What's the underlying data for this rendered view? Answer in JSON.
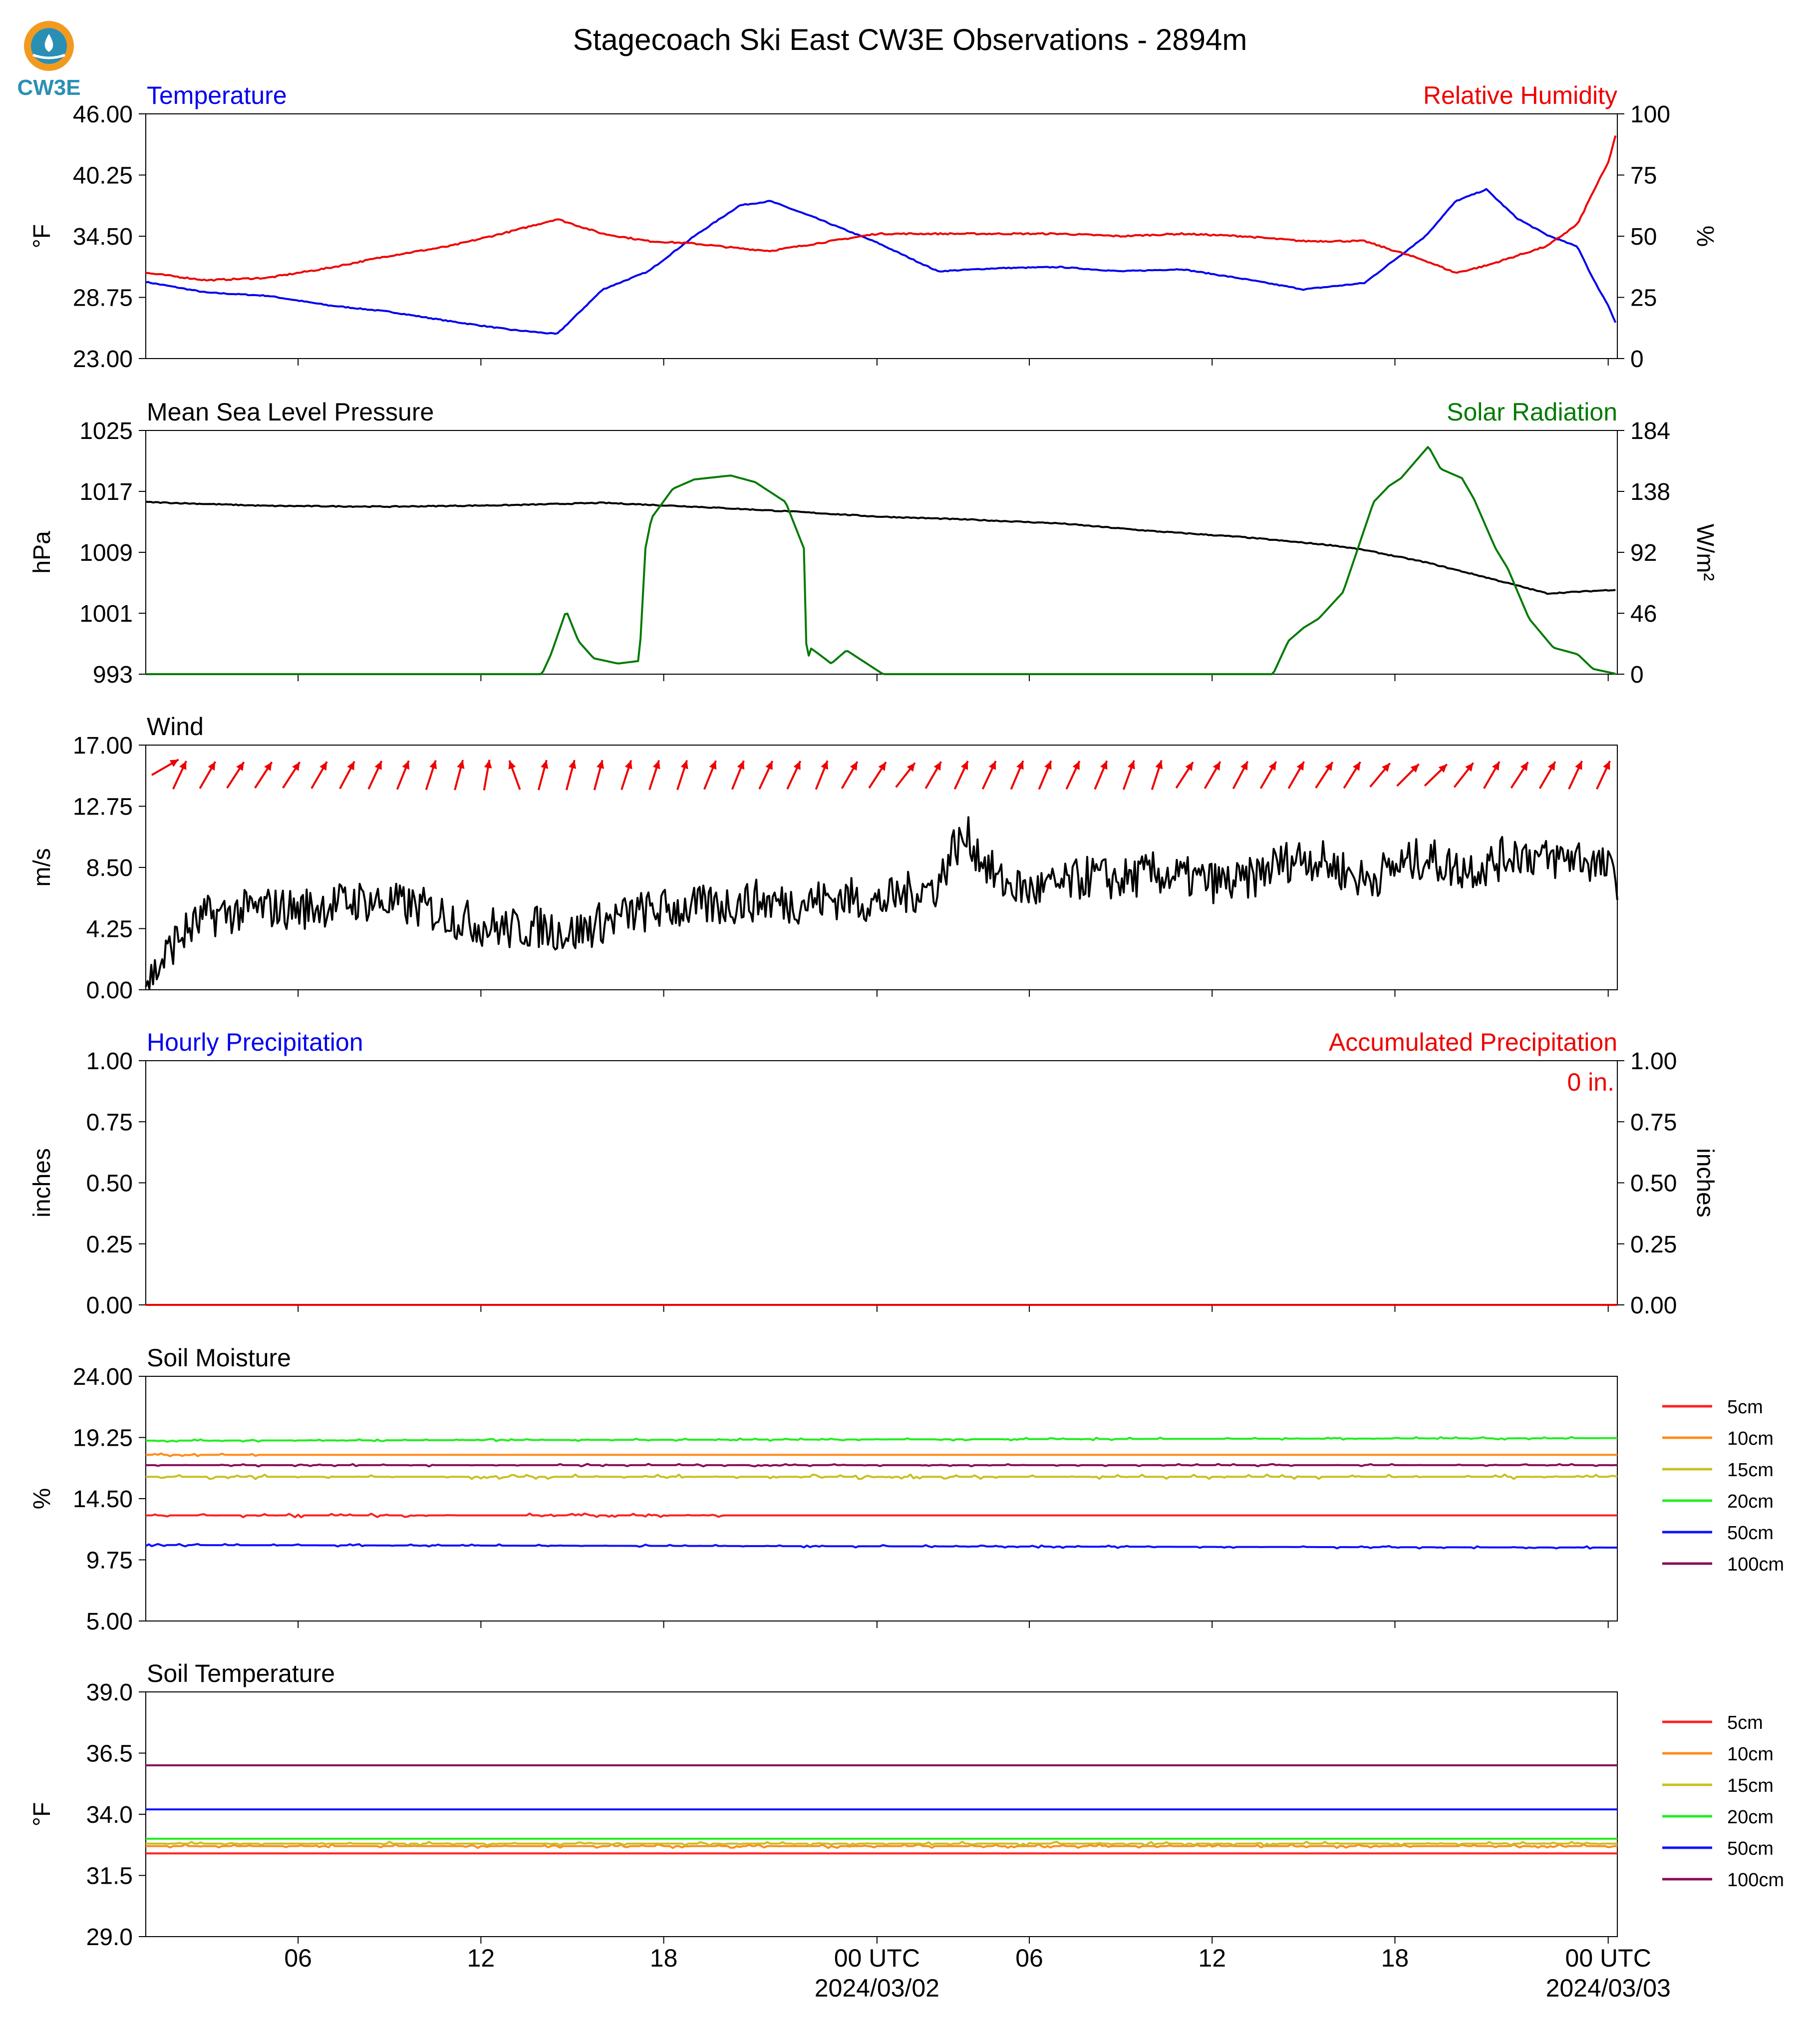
{
  "figure": {
    "title": "Stagecoach Ski East CW3E Observations - 2894m",
    "logo_text": "CW3E",
    "x_ticks": [
      "06",
      "12",
      "18",
      "00 UTC",
      "06",
      "12",
      "18",
      "00 UTC"
    ],
    "x_dates": [
      "2024/03/02",
      "2024/03/03"
    ],
    "colors": {
      "blue": "#0000ee",
      "red": "#ee0000",
      "green": "#007a00",
      "black": "#000000",
      "logo_orange": "#f29a1f",
      "logo_teal": "#2a8fb5"
    }
  },
  "chart_data": [
    {
      "type": "line",
      "left_title": "Temperature",
      "right_title": "Relative Humidity",
      "ylabel": "°F",
      "ylabel_right": "%",
      "ylim": [
        23,
        46
      ],
      "yticks": [
        "46.00",
        "40.25",
        "34.50",
        "28.75",
        "23.00"
      ],
      "ylim_right": [
        0,
        100
      ],
      "yticks_right": [
        "100",
        "75",
        "50",
        "25",
        "0"
      ],
      "x_hours": [
        0,
        2,
        4,
        6,
        8,
        10,
        12,
        13.5,
        15,
        16.5,
        18,
        19.5,
        20.5,
        22,
        24,
        26,
        28,
        30,
        32,
        34,
        36,
        38,
        40,
        42,
        43,
        44,
        45,
        46,
        47,
        47.5,
        48,
        48.3
      ],
      "series": [
        {
          "name": "Temperature",
          "color": "#0000ee",
          "axis": "left",
          "values": [
            30.2,
            29.2,
            28.9,
            28.0,
            27.4,
            26.5,
            25.7,
            25.3,
            29.5,
            31.2,
            34.5,
            37.4,
            37.8,
            36.2,
            33.9,
            31.2,
            31.5,
            31.6,
            31.2,
            31.4,
            30.5,
            29.5,
            30.1,
            34.5,
            37.8,
            38.9,
            36.2,
            34.6,
            33.5,
            30.5,
            28.0,
            26.0
          ]
        },
        {
          "name": "Relative Humidity",
          "color": "#ee0000",
          "axis": "right",
          "values": [
            35,
            32,
            33,
            37,
            42,
            46,
            52,
            57,
            51,
            48,
            47,
            45,
            44,
            47,
            51,
            51,
            51,
            51,
            50,
            51,
            50,
            48,
            48,
            40,
            35,
            38,
            42,
            46,
            55,
            68,
            80,
            94
          ]
        }
      ]
    },
    {
      "type": "line",
      "left_title": "Mean Sea Level Pressure",
      "right_title": "Solar Radiation",
      "ylabel": "hPa",
      "ylabel_right": "W/m²",
      "ylim": [
        993,
        1025
      ],
      "yticks": [
        "1025",
        "1017",
        "1009",
        "1001",
        "993"
      ],
      "ylim_right": [
        0,
        184
      ],
      "yticks_right": [
        "184",
        "138",
        "92",
        "46",
        "0"
      ],
      "x_hours": [
        0,
        4,
        8,
        12,
        15,
        18,
        21,
        24,
        27,
        30,
        33,
        36,
        39,
        40,
        42,
        44,
        46,
        48.3
      ],
      "series": [
        {
          "name": "Mean Sea Level Pressure",
          "color": "#000000",
          "axis": "left",
          "values": [
            1015.6,
            1015.1,
            1015.0,
            1015.2,
            1015.5,
            1015.0,
            1014.4,
            1013.7,
            1013.3,
            1012.8,
            1011.8,
            1011.0,
            1009.9,
            1009.3,
            1007.7,
            1005.7,
            1003.6,
            1004.1
          ]
        },
        {
          "name": "Solar Radiation",
          "color": "#007a00",
          "axis": "right",
          "x_hours": [
            0,
            13,
            13.3,
            13.8,
            14.2,
            14.7,
            15.5,
            16.2,
            16.4,
            16.6,
            17.3,
            18,
            19.2,
            20,
            21,
            21.6,
            21.7,
            21.8,
            22.1,
            22.5,
            23,
            23.4,
            23.8,
            24.2,
            36,
            37,
            37.5,
            38,
            38.5,
            39.3,
            40.3,
            40.8,
            41.2,
            42.1,
            42.5,
            43.2,
            43.6,
            44.3,
            44.7,
            45.4,
            46.2,
            47,
            47.5,
            48.3
          ],
          "values": [
            0,
            0,
            15,
            48,
            25,
            12,
            8,
            10,
            95,
            118,
            140,
            147,
            150,
            145,
            130,
            95,
            5,
            20,
            15,
            8,
            18,
            12,
            6,
            0,
            0,
            0,
            25,
            35,
            42,
            62,
            130,
            142,
            148,
            172,
            155,
            148,
            132,
            95,
            80,
            42,
            20,
            15,
            4,
            0
          ]
        }
      ]
    },
    {
      "type": "line",
      "left_title": "Wind",
      "ylabel": "m/s",
      "ylim": [
        0,
        17
      ],
      "yticks": [
        "17.00",
        "12.75",
        "8.50",
        "4.25",
        "0.00"
      ],
      "x_hours": [
        0,
        0.3,
        1,
        2,
        3,
        4,
        5,
        6,
        7,
        8,
        9,
        10,
        11,
        12,
        13,
        14,
        15,
        16,
        17,
        18,
        19,
        20,
        21,
        22,
        23,
        24,
        25,
        26,
        26.5,
        27,
        27.5,
        28,
        29,
        30,
        31,
        32,
        33,
        34,
        35,
        36,
        37,
        38,
        39,
        40,
        41,
        42,
        43,
        44,
        45,
        46,
        47,
        48,
        48.3
      ],
      "series": [
        {
          "name": "Wind Speed",
          "color": "#000000",
          "values": [
            0.6,
            1.2,
            3.5,
            5.1,
            5.4,
            5.7,
            5.6,
            5.9,
            6.2,
            6.0,
            5.7,
            5.1,
            4.5,
            4.2,
            4.4,
            3.9,
            4.7,
            5.3,
            5.6,
            5.7,
            5.9,
            6.2,
            6.0,
            6.2,
            6.4,
            6.0,
            6.7,
            7.2,
            9.9,
            10.5,
            9.0,
            7.5,
            6.9,
            7.2,
            7.9,
            7.6,
            8.1,
            7.8,
            7.5,
            7.4,
            8.6,
            9.3,
            8.6,
            7.6,
            8.5,
            9.2,
            8.4,
            8.6,
            9.6,
            9.0,
            9.3,
            8.3,
            7.7
          ]
        }
      ],
      "wind_barbs": {
        "color": "#ee0000",
        "direction_deg": [
          240,
          205,
          210,
          213,
          213,
          213,
          210,
          208,
          205,
          202,
          198,
          195,
          190,
          160,
          195,
          195,
          195,
          198,
          198,
          198,
          202,
          202,
          205,
          205,
          202,
          210,
          213,
          218,
          210,
          205,
          205,
          203,
          203,
          205,
          203,
          200,
          198,
          213,
          210,
          208,
          210,
          210,
          213,
          212,
          220,
          225,
          226,
          218,
          210,
          213,
          210,
          205,
          205
        ]
      }
    },
    {
      "type": "line",
      "left_title": "Hourly Precipitation",
      "right_title": "Accumulated Precipitation",
      "ylabel": "inches",
      "ylabel_right": "inches",
      "ylim": [
        0,
        1
      ],
      "yticks": [
        "1.00",
        "0.75",
        "0.50",
        "0.25",
        "0.00"
      ],
      "ylim_right": [
        0,
        1
      ],
      "yticks_right": [
        "1.00",
        "0.75",
        "0.50",
        "0.25",
        "0.00"
      ],
      "annotation": "0 in.",
      "x_hours": [
        0,
        48.3
      ],
      "series": [
        {
          "name": "Hourly Precipitation",
          "color": "#0000ee",
          "values": [
            0,
            0
          ]
        },
        {
          "name": "Accumulated Precipitation",
          "color": "#ee0000",
          "values": [
            0,
            0
          ]
        }
      ]
    },
    {
      "type": "line",
      "left_title": "Soil Moisture",
      "ylabel": "%",
      "ylim": [
        5,
        24
      ],
      "yticks": [
        "24.00",
        "19.25",
        "14.50",
        "9.75",
        "5.00"
      ],
      "legend": "right",
      "x_hours": [
        0,
        48.3
      ],
      "series": [
        {
          "name": "5cm",
          "color": "#ff2020",
          "values": [
            13.2,
            13.2
          ],
          "noise": 0.15,
          "noise_until": 20
        },
        {
          "name": "10cm",
          "color": "#ff8c1a",
          "values": [
            17.9,
            17.9
          ],
          "noise": 0.12,
          "noise_until": 4
        },
        {
          "name": "15cm",
          "color": "#c8c020",
          "values": [
            16.2,
            16.2
          ],
          "noise": 0.18,
          "noise_until": 48.3
        },
        {
          "name": "20cm",
          "color": "#22ee22",
          "values": [
            19.0,
            19.2
          ],
          "noise": 0.1,
          "noise_until": 48.3
        },
        {
          "name": "50cm",
          "color": "#1010ff",
          "values": [
            10.9,
            10.7
          ],
          "noise": 0.1,
          "noise_until": 48.3
        },
        {
          "name": "100cm",
          "color": "#8b0a5a",
          "values": [
            17.1,
            17.1
          ],
          "noise": 0.1,
          "noise_until": 48.3
        }
      ]
    },
    {
      "type": "line",
      "left_title": "Soil Temperature",
      "ylabel": "°F",
      "ylim": [
        29,
        39
      ],
      "yticks": [
        "39.0",
        "36.5",
        "34.0",
        "31.5",
        "29.0"
      ],
      "legend": "right",
      "x_hours": [
        0,
        48.3
      ],
      "series": [
        {
          "name": "5cm",
          "color": "#ff2020",
          "values": [
            32.4,
            32.4
          ],
          "noise": 0,
          "noise_until": 0
        },
        {
          "name": "10cm",
          "color": "#ff8c1a",
          "values": [
            32.7,
            32.7
          ],
          "noise": 0.08,
          "noise_until": 48.3
        },
        {
          "name": "15cm",
          "color": "#c8c020",
          "values": [
            32.8,
            32.8
          ],
          "noise": 0.08,
          "noise_until": 48.3
        },
        {
          "name": "20cm",
          "color": "#22ee22",
          "values": [
            33.0,
            33.0
          ],
          "noise": 0,
          "noise_until": 0
        },
        {
          "name": "50cm",
          "color": "#1010ff",
          "values": [
            34.2,
            34.2
          ],
          "noise": 0,
          "noise_until": 0
        },
        {
          "name": "100cm",
          "color": "#8b0a5a",
          "values": [
            36.0,
            36.0
          ],
          "noise": 0,
          "noise_until": 0
        }
      ]
    }
  ]
}
